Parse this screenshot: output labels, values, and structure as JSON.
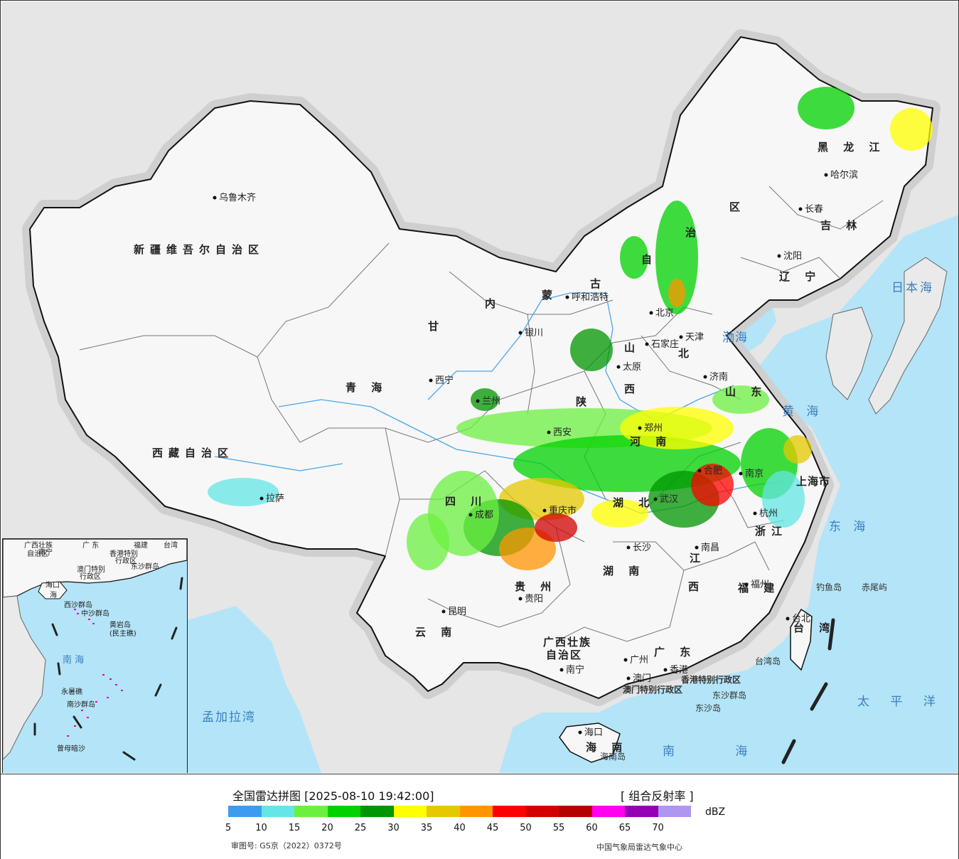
{
  "title": "全国雷达拼图 [2025-08-10 19:42:00]",
  "product": "[ 组合反射率 ]",
  "unit": "dBZ",
  "approval_no": "审图号: GS京（2022）0372号",
  "source": "中国气象局雷达气象中心",
  "legend": {
    "values": [
      "5",
      "10",
      "15",
      "20",
      "25",
      "30",
      "35",
      "40",
      "45",
      "50",
      "55",
      "60",
      "65",
      "70"
    ],
    "colors": [
      "#3e9cf0",
      "#64e6e6",
      "#6cf040",
      "#00d200",
      "#009600",
      "#ffff00",
      "#e6c800",
      "#ff9600",
      "#ff0000",
      "#d20000",
      "#b40000",
      "#ff00f0",
      "#9600b4",
      "#af96f0"
    ]
  },
  "colors": {
    "land": "#f7f7f7",
    "sea": "#b4e4f7",
    "outside": "#e6e6e6",
    "border": "#111111"
  },
  "map": {
    "provinces": [
      {
        "id": "xinjiang",
        "text": "新疆维吾尔自治区"
      },
      {
        "id": "xizang",
        "text": "西藏自治区"
      },
      {
        "id": "qinghai",
        "text": "青 海"
      },
      {
        "id": "gansu",
        "text": "甘"
      },
      {
        "id": "neimenggu1",
        "text": "内"
      },
      {
        "id": "neimenggu2",
        "text": "蒙"
      },
      {
        "id": "neimenggu3",
        "text": "古"
      },
      {
        "id": "neimenggu4",
        "text": "自"
      },
      {
        "id": "neimenggu5",
        "text": "治"
      },
      {
        "id": "neimenggu6",
        "text": "区"
      },
      {
        "id": "heilongjiang",
        "text": "黑 龙 江"
      },
      {
        "id": "jilin",
        "text": "吉 林"
      },
      {
        "id": "liaoning",
        "text": "辽 宁"
      },
      {
        "id": "hebei",
        "text": "北"
      },
      {
        "id": "shanxi1",
        "text": "山"
      },
      {
        "id": "shanxi2",
        "text": "西"
      },
      {
        "id": "shaanxi",
        "text": "陕"
      },
      {
        "id": "henan",
        "text": "河 南"
      },
      {
        "id": "shandong",
        "text": "山 东"
      },
      {
        "id": "sichuan",
        "text": "四 川"
      },
      {
        "id": "hubei",
        "text": "湖 北"
      },
      {
        "id": "hunan",
        "text": "湖 南"
      },
      {
        "id": "guizhou",
        "text": "贵 州"
      },
      {
        "id": "yunnan",
        "text": "云 南"
      },
      {
        "id": "jiangxi1",
        "text": "江"
      },
      {
        "id": "jiangxi2",
        "text": "西"
      },
      {
        "id": "zhejiang",
        "text": "浙江"
      },
      {
        "id": "fujian",
        "text": "福 建"
      },
      {
        "id": "guangxi1",
        "text": "广西壮族"
      },
      {
        "id": "guangxi2",
        "text": "自治区"
      },
      {
        "id": "guangdong",
        "text": "广 东"
      },
      {
        "id": "hainan",
        "text": "海 南"
      },
      {
        "id": "taiwan",
        "text": "台 湾"
      },
      {
        "id": "shanghai",
        "text": "上海市"
      }
    ],
    "cities": [
      {
        "id": "urumqi",
        "text": "乌鲁木齐"
      },
      {
        "id": "lhasa",
        "text": "拉萨"
      },
      {
        "id": "xining",
        "text": "西宁"
      },
      {
        "id": "lanzhou",
        "text": "兰州"
      },
      {
        "id": "yinchuan",
        "text": "银川"
      },
      {
        "id": "hohhot",
        "text": "呼和浩特"
      },
      {
        "id": "harbin",
        "text": "哈尔滨"
      },
      {
        "id": "changchun",
        "text": "长春"
      },
      {
        "id": "shenyang",
        "text": "沈阳"
      },
      {
        "id": "beijing",
        "text": "北京"
      },
      {
        "id": "tianjin",
        "text": "天津"
      },
      {
        "id": "shijiazhuang",
        "text": "石家庄"
      },
      {
        "id": "taiyuan",
        "text": "太原"
      },
      {
        "id": "jinan",
        "text": "济南"
      },
      {
        "id": "xian",
        "text": "西安"
      },
      {
        "id": "zhengzhou",
        "text": "郑州"
      },
      {
        "id": "hefei",
        "text": "合肥"
      },
      {
        "id": "nanjing",
        "text": "南京"
      },
      {
        "id": "chengdu",
        "text": "成都"
      },
      {
        "id": "chongqing",
        "text": "重庆市"
      },
      {
        "id": "wuhan",
        "text": "武汉"
      },
      {
        "id": "hangzhou",
        "text": "杭州"
      },
      {
        "id": "changsha",
        "text": "长沙"
      },
      {
        "id": "nanchang",
        "text": "南昌"
      },
      {
        "id": "guiyang",
        "text": "贵阳"
      },
      {
        "id": "kunming",
        "text": "昆明"
      },
      {
        "id": "fuzhou",
        "text": "福州"
      },
      {
        "id": "taipei",
        "text": "台北"
      },
      {
        "id": "guangzhou",
        "text": "广州"
      },
      {
        "id": "nanning",
        "text": "南宁"
      },
      {
        "id": "macau",
        "text": "澳门"
      },
      {
        "id": "hongkong",
        "text": "香港"
      },
      {
        "id": "haikou",
        "text": "海口"
      }
    ],
    "seas": [
      {
        "id": "bohai",
        "text": "渤海"
      },
      {
        "id": "huanghai",
        "text": "黄 海"
      },
      {
        "id": "donghai",
        "text": "东 海"
      },
      {
        "id": "nanhai",
        "text": "南 海"
      },
      {
        "id": "ribenhai",
        "text": "日本海"
      },
      {
        "id": "taipingyang",
        "text": "太 平 洋"
      },
      {
        "id": "mengjialawan",
        "text": "孟加拉湾"
      }
    ],
    "islands": [
      {
        "id": "diaoyu",
        "text": "钓鱼岛"
      },
      {
        "id": "chiwei",
        "text": "赤尾屿"
      },
      {
        "id": "taiwan_isl",
        "text": "台湾岛"
      },
      {
        "id": "hainan_isl",
        "text": "海南岛"
      },
      {
        "id": "dongsha",
        "text": "东沙群岛"
      },
      {
        "id": "dongsha_isl",
        "text": "东沙岛"
      },
      {
        "id": "hk_sar",
        "text": "香港特别行政区"
      },
      {
        "id": "mo_sar",
        "text": "澳门特别行政区"
      }
    ],
    "inset": [
      {
        "id": "i_gx",
        "text": "广西壮族"
      },
      {
        "id": "i_gx2",
        "text": "自治区"
      },
      {
        "id": "i_gd",
        "text": "广 东"
      },
      {
        "id": "i_nanning",
        "text": "南宁"
      },
      {
        "id": "i_fujian",
        "text": "福建"
      },
      {
        "id": "i_taiwan",
        "text": "台湾"
      },
      {
        "id": "i_hk",
        "text": "香港特别"
      },
      {
        "id": "i_hk2",
        "text": "行政区"
      },
      {
        "id": "i_mo",
        "text": "澳门特别"
      },
      {
        "id": "i_mo2",
        "text": "行政区"
      },
      {
        "id": "i_dongsha",
        "text": "东沙群岛"
      },
      {
        "id": "i_haikou",
        "text": "海口"
      },
      {
        "id": "i_hainan",
        "text": "海"
      },
      {
        "id": "i_xisha",
        "text": "西沙群岛"
      },
      {
        "id": "i_zhongsha",
        "text": "中沙群岛"
      },
      {
        "id": "i_huangyan",
        "text": "黄岩岛"
      },
      {
        "id": "i_huangyan2",
        "text": "(民主礁)"
      },
      {
        "id": "i_nanhai",
        "text": "南 海"
      },
      {
        "id": "i_yongshu",
        "text": "永暑礁"
      },
      {
        "id": "i_nansha",
        "text": "南沙群岛"
      },
      {
        "id": "i_zengmu",
        "text": "曾母暗沙"
      }
    ]
  }
}
